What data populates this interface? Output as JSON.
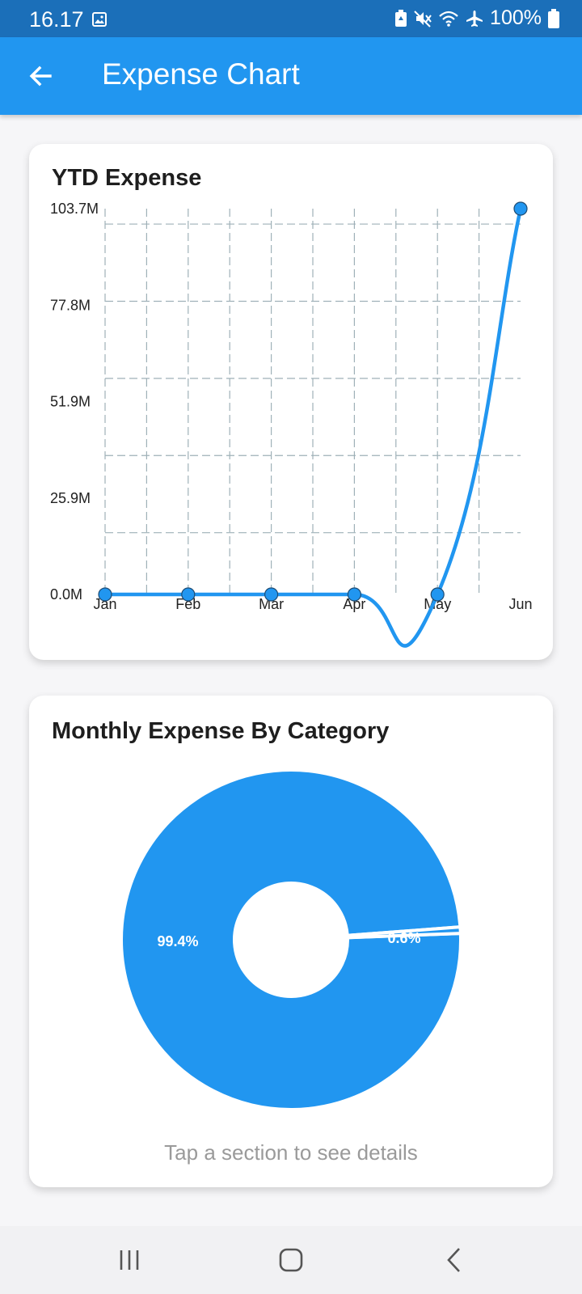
{
  "status_bar": {
    "time": "16.17",
    "battery": "100%",
    "icons": [
      "gallery-icon",
      "battery-saver-icon",
      "mute-icon",
      "wifi-icon",
      "airplane-icon",
      "battery-icon"
    ]
  },
  "app_bar": {
    "title": "Expense Chart",
    "back_icon": "arrow-back-icon",
    "color": "#2196f0"
  },
  "ytd_card": {
    "title": "YTD Expense"
  },
  "monthly_card": {
    "title": "Monthly Expense By Category",
    "hint": "Tap a section to see details"
  },
  "nav_bar": {
    "icons": [
      "recent-apps-icon",
      "home-icon",
      "back-icon"
    ]
  },
  "chart_data": [
    {
      "type": "line",
      "title": "YTD Expense",
      "x": [
        "Jan",
        "Feb",
        "Mar",
        "Apr",
        "May",
        "Jun"
      ],
      "series": [
        {
          "values": [
            0,
            0,
            0,
            0,
            0,
            103.7
          ],
          "color": "#2196f0"
        }
      ],
      "y_ticks": [
        "0.0M",
        "25.9M",
        "51.9M",
        "77.8M",
        "103.7M"
      ],
      "ylim": [
        0,
        103.7
      ],
      "grid": true,
      "curved": true
    },
    {
      "type": "pie",
      "title": "Monthly Expense By Category",
      "donut": true,
      "slices": [
        {
          "value": 99.4,
          "label": "99.4%",
          "color": "#2196f0"
        },
        {
          "value": 0.6,
          "label": "0.6%",
          "color": "#2196f0"
        }
      ]
    }
  ]
}
